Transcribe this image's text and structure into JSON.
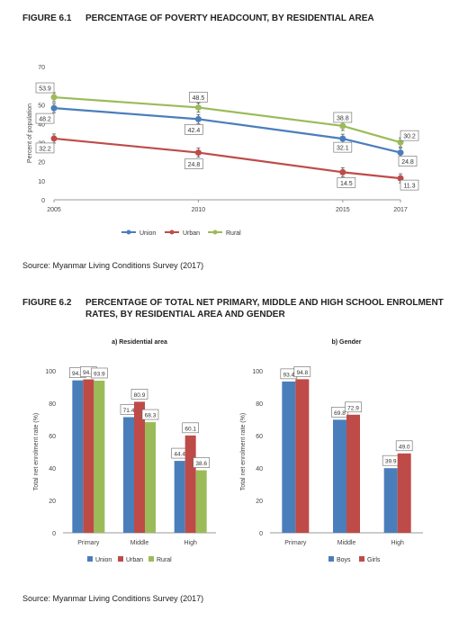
{
  "figure1": {
    "number": "FIGURE 6.1",
    "title": "PERCENTAGE OF POVERTY HEADCOUNT, BY RESIDENTIAL AREA",
    "source": "Source: Myanmar Living Conditions Survey (2017)"
  },
  "figure2": {
    "number": "FIGURE 6.2",
    "title": "PERCENTAGE OF TOTAL NET PRIMARY, MIDDLE  AND HIGH SCHOOL ENROLMENT RATES, BY RESIDENTIAL AREA  AND GENDER",
    "source": "Source: Myanmar Living Conditions Survey (2017)"
  },
  "colors": {
    "union": "#4a7ebb",
    "urban": "#be4b48",
    "rural": "#9bbb59"
  },
  "chart_data": [
    {
      "type": "line",
      "title": "",
      "xlabel": "",
      "ylabel": "Percent of population",
      "x": [
        2005,
        2010,
        2015,
        2017
      ],
      "xticks": [
        "2005",
        "2010",
        "2015",
        "2017"
      ],
      "ylim": [
        0,
        70
      ],
      "yticks": [
        "0",
        "10",
        "20",
        "30",
        "40",
        "50",
        "60",
        "70"
      ],
      "grid": false,
      "legend": "bottom",
      "error_bars": true,
      "series": [
        {
          "name": "Union",
          "values": [
            48.2,
            42.4,
            32.1,
            24.8
          ],
          "labels": [
            "48.2",
            "42.4",
            "32.1",
            "24.8"
          ]
        },
        {
          "name": "Urban",
          "values": [
            32.2,
            24.8,
            14.5,
            11.3
          ],
          "labels": [
            "32.2",
            "24.8",
            "14.5",
            "11.3"
          ]
        },
        {
          "name": "Rural",
          "values": [
            53.9,
            48.5,
            38.8,
            30.2
          ],
          "labels": [
            "53.9",
            "48.5",
            "38.8",
            "30.2"
          ]
        }
      ]
    },
    {
      "type": "bar",
      "title": "a) Residential area",
      "xlabel": "",
      "ylabel": "Total net enrolment rate (%)",
      "categories": [
        "Primary",
        "Middle",
        "High"
      ],
      "ylim": [
        0,
        100
      ],
      "yticks": [
        "0",
        "20",
        "40",
        "60",
        "80",
        "100"
      ],
      "grid": false,
      "legend": "bottom",
      "series": [
        {
          "name": "Union",
          "values": [
            94.1,
            71.4,
            44.4
          ],
          "labels": [
            "94.1",
            "71.4",
            "44.4"
          ]
        },
        {
          "name": "Urban",
          "values": [
            94.7,
            80.9,
            60.1
          ],
          "labels": [
            "94.7",
            "80.9",
            "60.1"
          ]
        },
        {
          "name": "Rural",
          "values": [
            93.9,
            68.3,
            38.6
          ],
          "labels": [
            "93.9",
            "68.3",
            "38.6"
          ]
        }
      ]
    },
    {
      "type": "bar",
      "title": "b) Gender",
      "xlabel": "",
      "ylabel": "Total net enrolment rate (%)",
      "categories": [
        "Primary",
        "Middle",
        "High"
      ],
      "ylim": [
        0,
        100
      ],
      "yticks": [
        "0",
        "20",
        "40",
        "60",
        "80",
        "100"
      ],
      "grid": false,
      "legend": "bottom",
      "series": [
        {
          "name": "Boys",
          "values": [
            93.4,
            69.8,
            39.9
          ],
          "labels": [
            "93.4",
            "69.8",
            "39.9"
          ]
        },
        {
          "name": "Girls",
          "values": [
            94.8,
            72.9,
            49.0
          ],
          "labels": [
            "94.8",
            "72.9",
            "49.0"
          ]
        }
      ]
    }
  ]
}
